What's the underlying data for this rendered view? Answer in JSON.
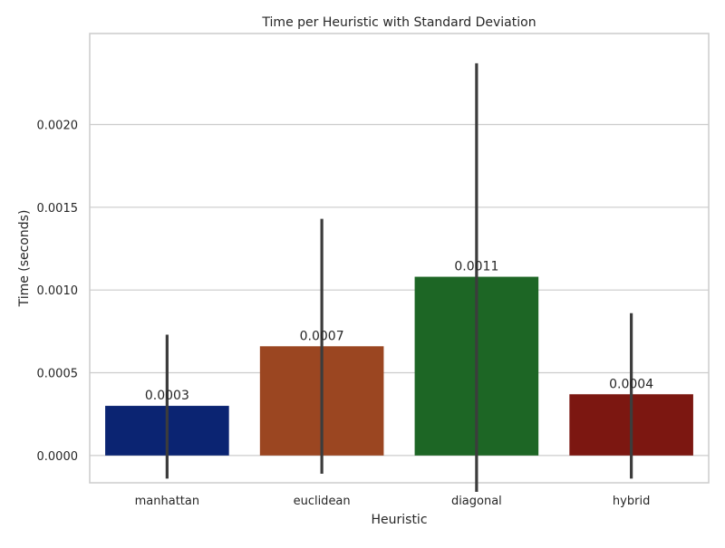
{
  "chart_data": {
    "type": "bar",
    "title": "Time per Heuristic with Standard Deviation",
    "xlabel": "Heuristic",
    "ylabel": "Time (seconds)",
    "categories": [
      "manhattan",
      "euclidean",
      "diagonal",
      "hybrid"
    ],
    "values": [
      0.0003,
      0.00066,
      0.00108,
      0.00037
    ],
    "data_labels": [
      "0.0003",
      "0.0007",
      "0.0011",
      "0.0004"
    ],
    "error_low": [
      -0.00014,
      -0.00011,
      -0.00022,
      -0.00014
    ],
    "error_high": [
      0.00073,
      0.00143,
      0.00237,
      0.00086
    ],
    "colors": [
      "#0b2472",
      "#9b4621",
      "#1d6625",
      "#7c1711"
    ],
    "ylim": [
      -0.000165,
      0.00255
    ],
    "yticks": [
      0,
      0.0005,
      0.001,
      0.0015,
      0.002
    ],
    "ytick_labels": [
      "0.0000",
      "0.0005",
      "0.0010",
      "0.0015",
      "0.0020"
    ],
    "grid": "horizontal",
    "legend": "none"
  }
}
